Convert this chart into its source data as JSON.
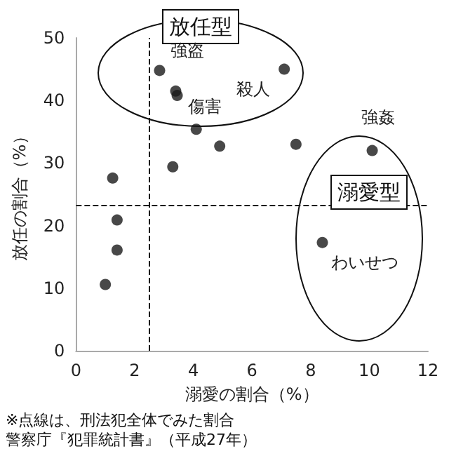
{
  "chart_data": {
    "type": "scatter",
    "xlabel": "溺愛の割合（%）",
    "ylabel": "放任の割合（%）",
    "x": [
      2.85,
      3.4,
      3.45,
      7.1,
      4.1,
      4.9,
      7.5,
      10.1,
      3.3,
      1.25,
      1.4,
      1.4,
      1.0,
      8.4
    ],
    "values": [
      44.8,
      41.5,
      40.8,
      45,
      35.4,
      32.7,
      33,
      32,
      29.4,
      27.6,
      20.9,
      16.1,
      10.6,
      17.3
    ],
    "color": "#1a1a1a",
    "marker": "circle",
    "grid": false,
    "xlim": [
      0,
      12
    ],
    "xticks": [
      0,
      2,
      4,
      6,
      8,
      10,
      12
    ],
    "ylim": [
      0,
      50
    ],
    "yticks": [
      0,
      10,
      20,
      30,
      40,
      50
    ],
    "ref_lines": [
      {
        "axis": "x",
        "value": 2.5,
        "line_style": "dashed",
        "color": "#1a1a1a"
      },
      {
        "axis": "y",
        "value": 23.3,
        "line_style": "dashed",
        "color": "#1a1a1a"
      }
    ],
    "annotations": [
      {
        "text": "強盗",
        "x": 2.85,
        "y": 44.8
      },
      {
        "text": "殺人",
        "x": 7.1,
        "y": 45
      },
      {
        "text": "傷害",
        "x": 4.1,
        "y": 35.4
      },
      {
        "text": "強姦",
        "x": 10.1,
        "y": 32
      },
      {
        "text": "わいせつ",
        "x": 8.4,
        "y": 17.3
      },
      "放任型",
      "溺愛型",
      "※点線は、刑法犯全体でみた割合",
      "警察庁『犯罪統計書』（平成27年）"
    ]
  }
}
